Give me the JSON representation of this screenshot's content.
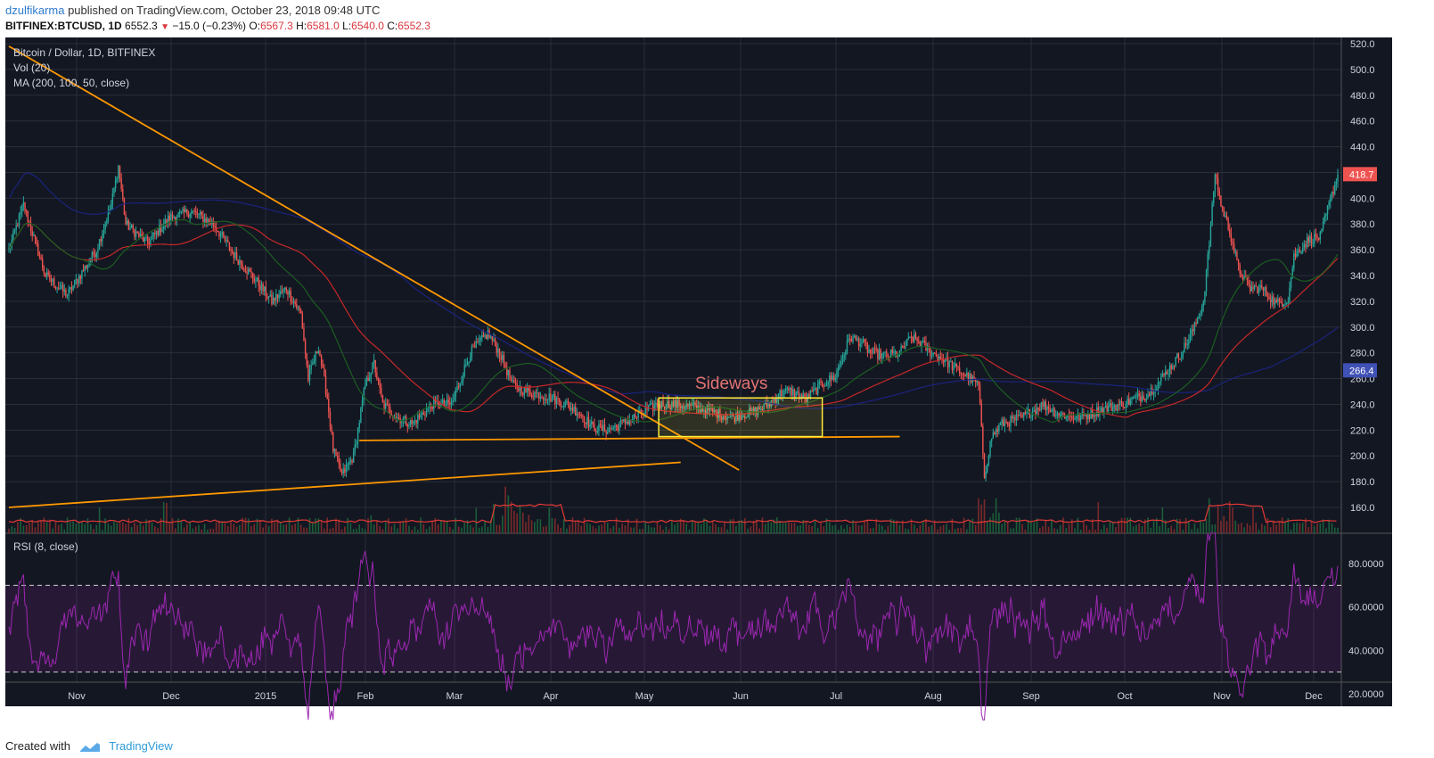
{
  "header": {
    "user": "dzulfikarma",
    "published": " published on TradingView.com, October 23, 2018 09:48 UTC",
    "symbol": "BITFINEX:BTCUSD, 1D",
    "last": "6552.3",
    "change": "−15.0 (−0.23%)",
    "o_label": "O:",
    "o_val": "6567.3",
    "h_label": "H:",
    "h_val": "6581.0",
    "l_label": "L:",
    "l_val": "6540.0",
    "c_label": "C:",
    "c_val": "6552.3"
  },
  "legend": {
    "title": "Bitcoin / Dollar, 1D, BITFINEX",
    "vol": "Vol (20)",
    "ma": "MA (200, 100, 50, close)",
    "rsi": "RSI (8, close)"
  },
  "annotation": "Sideways",
  "footer": {
    "created": "Created with",
    "brand": "TradingView"
  },
  "colors": {
    "background": "#131722",
    "grid": "#2a2e39",
    "up": "#26a69a",
    "down": "#ef5350",
    "trendline": "#ff9800",
    "box": "#ffeb3b",
    "ma200": "#1a237e",
    "ma100": "#c62828",
    "ma50": "#1b5e20",
    "rsi": "#9c27b0"
  },
  "chart_data": {
    "type": "candlestick",
    "x_ticks": [
      "Nov",
      "Dec",
      "2015",
      "Feb",
      "Mar",
      "Apr",
      "May",
      "Jun",
      "Jul",
      "Aug",
      "Sep",
      "Oct",
      "Nov",
      "Dec"
    ],
    "y_ticks": [
      "520.0",
      "500.0",
      "480.0",
      "460.0",
      "440.0",
      "420.0",
      "400.0",
      "380.0",
      "360.0",
      "340.0",
      "320.0",
      "300.0",
      "280.0",
      "260.0",
      "240.0",
      "220.0",
      "200.0",
      "180.0",
      "160.0"
    ],
    "ylim": [
      146,
      522
    ],
    "last_price_label": "418.7",
    "ma200_label": "266.4",
    "rsi_ticks": [
      "80.0000",
      "60.0000",
      "40.0000",
      "20.0000"
    ],
    "rsi_levels": [
      70,
      30
    ],
    "price_keypoints": [
      [
        0,
        360
      ],
      [
        10,
        395
      ],
      [
        25,
        340
      ],
      [
        40,
        325
      ],
      [
        60,
        360
      ],
      [
        70,
        395
      ],
      [
        75,
        425
      ],
      [
        80,
        380
      ],
      [
        95,
        365
      ],
      [
        110,
        385
      ],
      [
        125,
        390
      ],
      [
        140,
        380
      ],
      [
        155,
        355
      ],
      [
        170,
        335
      ],
      [
        180,
        320
      ],
      [
        190,
        330
      ],
      [
        200,
        310
      ],
      [
        205,
        260
      ],
      [
        212,
        285
      ],
      [
        218,
        245
      ],
      [
        222,
        205
      ],
      [
        228,
        185
      ],
      [
        236,
        200
      ],
      [
        244,
        255
      ],
      [
        250,
        272
      ],
      [
        256,
        240
      ],
      [
        266,
        230
      ],
      [
        276,
        225
      ],
      [
        290,
        240
      ],
      [
        303,
        240
      ],
      [
        316,
        280
      ],
      [
        328,
        295
      ],
      [
        336,
        280
      ],
      [
        345,
        255
      ],
      [
        354,
        250
      ],
      [
        362,
        248
      ],
      [
        372,
        245
      ],
      [
        382,
        240
      ],
      [
        392,
        232
      ],
      [
        400,
        222
      ],
      [
        410,
        220
      ],
      [
        420,
        225
      ],
      [
        432,
        232
      ],
      [
        444,
        240
      ],
      [
        456,
        240
      ],
      [
        468,
        238
      ],
      [
        480,
        235
      ],
      [
        488,
        232
      ],
      [
        495,
        230
      ],
      [
        502,
        232
      ],
      [
        512,
        235
      ],
      [
        520,
        240
      ],
      [
        530,
        250
      ],
      [
        536,
        250
      ],
      [
        546,
        244
      ],
      [
        556,
        255
      ],
      [
        566,
        262
      ],
      [
        576,
        292
      ],
      [
        584,
        288
      ],
      [
        590,
        280
      ],
      [
        600,
        278
      ],
      [
        610,
        280
      ],
      [
        618,
        292
      ],
      [
        624,
        288
      ],
      [
        632,
        280
      ],
      [
        640,
        275
      ],
      [
        648,
        268
      ],
      [
        656,
        262
      ],
      [
        664,
        255
      ],
      [
        668,
        185
      ],
      [
        673,
        215
      ],
      [
        680,
        225
      ],
      [
        694,
        230
      ],
      [
        708,
        240
      ],
      [
        720,
        232
      ],
      [
        734,
        230
      ],
      [
        748,
        236
      ],
      [
        762,
        240
      ],
      [
        772,
        245
      ],
      [
        780,
        248
      ],
      [
        788,
        258
      ],
      [
        796,
        270
      ],
      [
        804,
        282
      ],
      [
        812,
        300
      ],
      [
        818,
        320
      ],
      [
        822,
        365
      ],
      [
        826,
        420
      ],
      [
        830,
        395
      ],
      [
        836,
        375
      ],
      [
        842,
        345
      ],
      [
        850,
        330
      ],
      [
        858,
        330
      ],
      [
        868,
        318
      ],
      [
        876,
        322
      ],
      [
        880,
        355
      ],
      [
        890,
        368
      ],
      [
        898,
        370
      ],
      [
        904,
        395
      ],
      [
        910,
        418.7
      ]
    ],
    "volume_bars": 911,
    "ma_lines": [
      "MA 200",
      "MA 100",
      "MA 50"
    ],
    "trendlines": [
      {
        "from": [
          0,
          518
        ],
        "to": [
          500,
          189
        ]
      },
      {
        "from": [
          240,
          212
        ],
        "to": [
          610,
          215
        ]
      },
      {
        "from": [
          0,
          160
        ],
        "to": [
          460,
          195
        ]
      }
    ],
    "box": {
      "x_from": 445,
      "x_to": 557,
      "y_from": 215,
      "y_to": 245
    },
    "grid": true
  }
}
